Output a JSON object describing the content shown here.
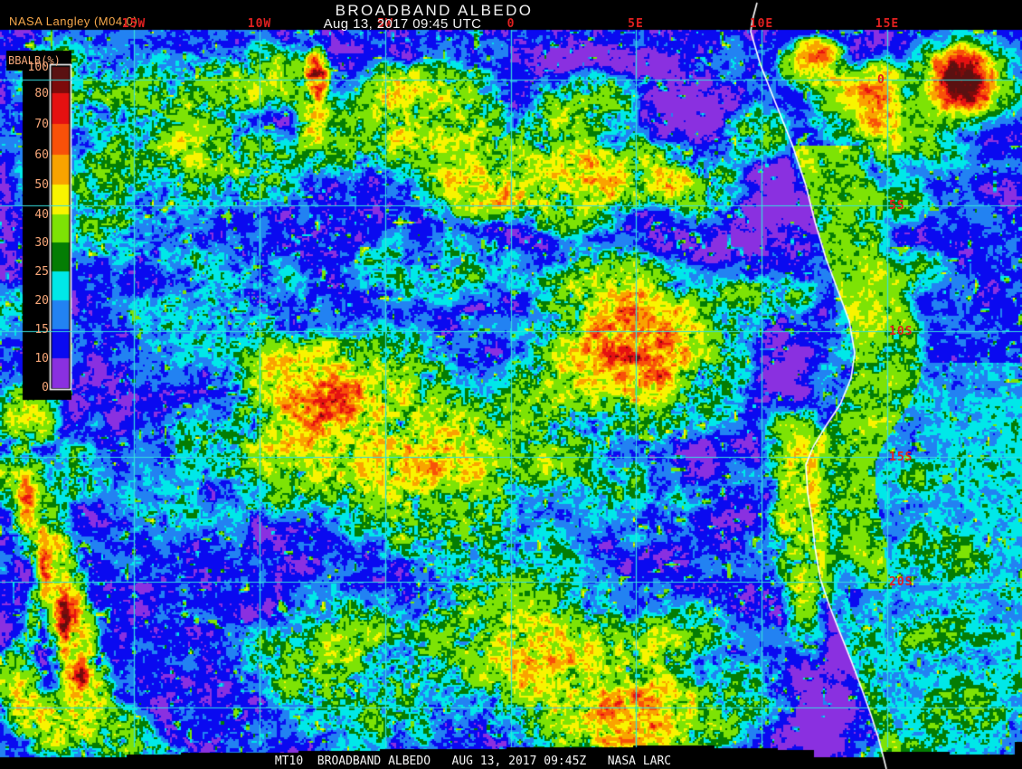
{
  "header": {
    "credit": "NASA Langley (M04.0)",
    "title": "BROADBAND ALBEDO",
    "subtitle": "Aug 13, 2017 09:45 UTC"
  },
  "footer": {
    "text": "MT10  BROADBAND ALBEDO   AUG 13, 2017 09:45Z   NASA LARC"
  },
  "legend": {
    "title": "BBALB(%)",
    "ticks": [
      100,
      80,
      70,
      60,
      50,
      40,
      30,
      25,
      20,
      15,
      10,
      0
    ],
    "segments": [
      {
        "min": 90,
        "max": 100,
        "color": "#5a1111"
      },
      {
        "min": 80,
        "max": 90,
        "color": "#7d0b0b"
      },
      {
        "min": 70,
        "max": 80,
        "color": "#e51111"
      },
      {
        "min": 60,
        "max": 70,
        "color": "#f85109"
      },
      {
        "min": 50,
        "max": 60,
        "color": "#f9a300"
      },
      {
        "min": 40,
        "max": 50,
        "color": "#f8f400"
      },
      {
        "min": 30,
        "max": 40,
        "color": "#7de305"
      },
      {
        "min": 25,
        "max": 30,
        "color": "#047d04"
      },
      {
        "min": 20,
        "max": 25,
        "color": "#00e8e8"
      },
      {
        "min": 15,
        "max": 20,
        "color": "#2282f2"
      },
      {
        "min": 10,
        "max": 15,
        "color": "#0a0af0"
      },
      {
        "min": 0,
        "max": 10,
        "color": "#8a30e0"
      }
    ]
  },
  "grid": {
    "line_color": "#35dede",
    "label_color": "#e02020",
    "longitude_labels": [
      {
        "label": "15W",
        "deg": -15
      },
      {
        "label": "10W",
        "deg": -10
      },
      {
        "label": "5W",
        "deg": -5
      },
      {
        "label": "0",
        "deg": 0
      },
      {
        "label": "5E",
        "deg": 5
      },
      {
        "label": "10E",
        "deg": 10
      },
      {
        "label": "15E",
        "deg": 15
      }
    ],
    "latitude_labels": [
      {
        "label": "0",
        "deg": 0
      },
      {
        "label": "5S",
        "deg": 5
      },
      {
        "label": "10S",
        "deg": 10
      },
      {
        "label": "15S",
        "deg": 15
      },
      {
        "label": "20S",
        "deg": 20
      },
      {
        "label": "",
        "deg": 25
      }
    ]
  },
  "colors": {
    "background": "#000000",
    "title_text": "#f2f2f2",
    "credit_text": "#f5a74b",
    "legend_label": "#f8a87a",
    "coastline": "#ffffff",
    "footer_text": "#f5f5f5"
  }
}
